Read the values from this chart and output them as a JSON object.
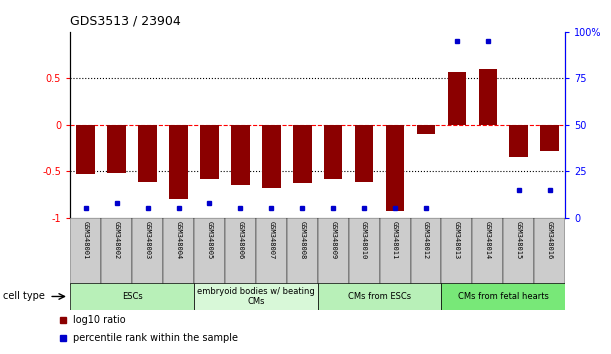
{
  "title": "GDS3513 / 23904",
  "samples": [
    "GSM348001",
    "GSM348002",
    "GSM348003",
    "GSM348004",
    "GSM348005",
    "GSM348006",
    "GSM348007",
    "GSM348008",
    "GSM348009",
    "GSM348010",
    "GSM348011",
    "GSM348012",
    "GSM348013",
    "GSM348014",
    "GSM348015",
    "GSM348016"
  ],
  "log10_ratio": [
    -0.53,
    -0.52,
    -0.62,
    -0.8,
    -0.58,
    -0.65,
    -0.68,
    -0.63,
    -0.58,
    -0.62,
    -0.93,
    -0.1,
    0.57,
    0.6,
    -0.35,
    -0.28
  ],
  "percentile_rank": [
    5,
    8,
    5,
    5,
    8,
    5,
    5,
    5,
    5,
    5,
    5,
    5,
    95,
    95,
    15,
    15
  ],
  "cell_type_groups": [
    {
      "label": "ESCs",
      "start": 0,
      "end": 3,
      "color": "#b8f0b8"
    },
    {
      "label": "embryoid bodies w/ beating\nCMs",
      "start": 3,
      "end": 7,
      "color": "#d8f8d8"
    },
    {
      "label": "CMs from ESCs",
      "start": 7,
      "end": 11,
      "color": "#b8f0b8"
    },
    {
      "label": "CMs from fetal hearts",
      "start": 11,
      "end": 15,
      "color": "#78e878"
    }
  ],
  "bar_color": "#8b0000",
  "dot_color": "#0000cc",
  "ylim_left": [
    -1.0,
    1.0
  ],
  "ylim_right": [
    0,
    100
  ],
  "yticks_left": [
    -1.0,
    -0.5,
    0.0,
    0.5
  ],
  "ytick_labels_left": [
    "-1",
    "-0.5",
    "0",
    "0.5"
  ],
  "yticks_right": [
    0,
    25,
    50,
    75,
    100
  ],
  "ytick_labels_right": [
    "0",
    "25",
    "50",
    "75",
    "100%"
  ],
  "hline_dotted": [
    0.5,
    -0.5
  ],
  "hline_dashed": [
    0.0
  ],
  "legend_ratio_label": "log10 ratio",
  "legend_pct_label": "percentile rank within the sample",
  "cell_type_label": "cell type",
  "bg_color_plot": "#ffffff",
  "sample_label_bg": "#d0d0d0"
}
